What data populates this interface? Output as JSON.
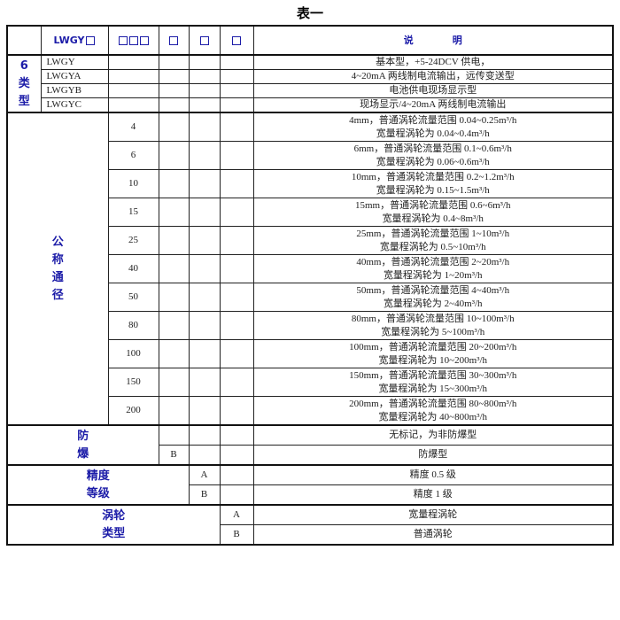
{
  "title": "表一",
  "header": {
    "model": "LWGY",
    "description": "说　　　　明"
  },
  "accent_color": "#1c1ca8",
  "type_group": {
    "label_lines": [
      "6",
      "类",
      "型"
    ],
    "rows": [
      {
        "code": "LWGY",
        "desc": "基本型，+5-24DCV 供电，"
      },
      {
        "code": "LWGYA",
        "desc": "4~20mA 两线制电流输出，远传变送型"
      },
      {
        "code": "LWGYB",
        "desc": "电池供电现场显示型"
      },
      {
        "code": "LWGYC",
        "desc": "现场显示/4~20mA 两线制电流输出"
      }
    ]
  },
  "size_group": {
    "label_lines": [
      "公",
      "称",
      "通",
      "径"
    ],
    "rows": [
      {
        "code": "4",
        "desc1": "4mm，普通涡轮流量范围 0.04~0.25m³/h",
        "desc2": "宽量程涡轮为 0.04~0.4m³/h"
      },
      {
        "code": "6",
        "desc1": "6mm，普通涡轮流量范围 0.1~0.6m³/h",
        "desc2": "宽量程涡轮为 0.06~0.6m³/h"
      },
      {
        "code": "10",
        "desc1": "10mm，普通涡轮流量范围 0.2~1.2m³/h",
        "desc2": "宽量程涡轮为 0.15~1.5m³/h"
      },
      {
        "code": "15",
        "desc1": "15mm，普通涡轮流量范围 0.6~6m³/h",
        "desc2": "宽量程涡轮为 0.4~8m³/h"
      },
      {
        "code": "25",
        "desc1": "25mm，普通涡轮流量范围 1~10m³/h",
        "desc2": "宽量程涡轮为 0.5~10m³/h"
      },
      {
        "code": "40",
        "desc1": "40mm，普通涡轮流量范围 2~20m³/h",
        "desc2": "宽量程涡轮为 1~20m³/h"
      },
      {
        "code": "50",
        "desc1": "50mm，普通涡轮流量范围 4~40m³/h",
        "desc2": "宽量程涡轮为 2~40m³/h"
      },
      {
        "code": "80",
        "desc1": "80mm，普通涡轮流量范围 10~100m³/h",
        "desc2": "宽量程涡轮为 5~100m³/h"
      },
      {
        "code": "100",
        "desc1": "100mm，普通涡轮流量范围 20~200m³/h",
        "desc2": "宽量程涡轮为 10~200m³/h"
      },
      {
        "code": "150",
        "desc1": "150mm，普通涡轮流量范围 30~300m³/h",
        "desc2": "宽量程涡轮为 15~300m³/h"
      },
      {
        "code": "200",
        "desc1": "200mm，普通涡轮流量范围 80~800m³/h",
        "desc2": "宽量程涡轮为 40~800m³/h"
      }
    ]
  },
  "explosion_group": {
    "label_lines": [
      "防",
      "爆"
    ],
    "rows": [
      {
        "code": "",
        "desc": "无标记，为非防爆型"
      },
      {
        "code": "B",
        "desc": "防爆型"
      }
    ]
  },
  "accuracy_group": {
    "label_lines": [
      "精度",
      "等级"
    ],
    "rows": [
      {
        "code": "A",
        "desc": "精度 0.5 级"
      },
      {
        "code": "B",
        "desc": "精度 1 级"
      }
    ]
  },
  "turbine_group": {
    "label_lines": [
      "涡轮",
      "类型"
    ],
    "rows": [
      {
        "code": "A",
        "desc": "宽量程涡轮"
      },
      {
        "code": "B",
        "desc": "普通涡轮"
      }
    ]
  }
}
